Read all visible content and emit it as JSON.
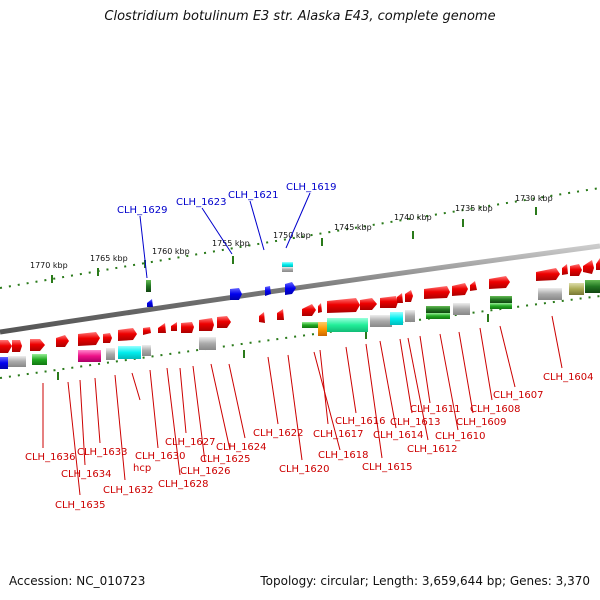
{
  "title": "Clostridium botulinum E3 str. Alaska E43, complete genome",
  "footer": {
    "accession": "Accession: NC_010723",
    "stats": "Topology: circular; Length: 3,659,644 bp; Genes: 3,370"
  },
  "kbp_labels": [
    "1770 kbp",
    "1765 kbp",
    "1760 kbp",
    "1755 kbp",
    "1750 kbp",
    "1745 kbp",
    "1740 kbp",
    "1735 kbp",
    "1730 kbp"
  ],
  "labels_top": [
    "CLH_1629",
    "CLH_1623",
    "CLH_1621",
    "CLH_1619"
  ],
  "labels_bottom": [
    "CLH_1636",
    "CLH_1635",
    "CLH_1634",
    "CLH_1633",
    "CLH_1632",
    "hcp",
    "CLH_1630",
    "CLH_1628",
    "CLH_1627",
    "CLH_1626",
    "CLH_1625",
    "CLH_1624",
    "CLH_1622",
    "CLH_1620",
    "CLH_1618",
    "CLH_1617",
    "CLH_1616",
    "CLH_1615",
    "CLH_1614",
    "CLH_1613",
    "CLH_1612",
    "CLH_1611",
    "CLH_1610",
    "CLH_1609",
    "CLH_1608",
    "CLH_1607",
    "CLH_1604"
  ],
  "colors": {
    "forward_gene": "#ee0000",
    "reverse_gene": "#0000ee",
    "label_red": "#cc0000",
    "label_blue": "#0000cc",
    "backbone": "#777777",
    "ticks": "#2a7a1a"
  }
}
